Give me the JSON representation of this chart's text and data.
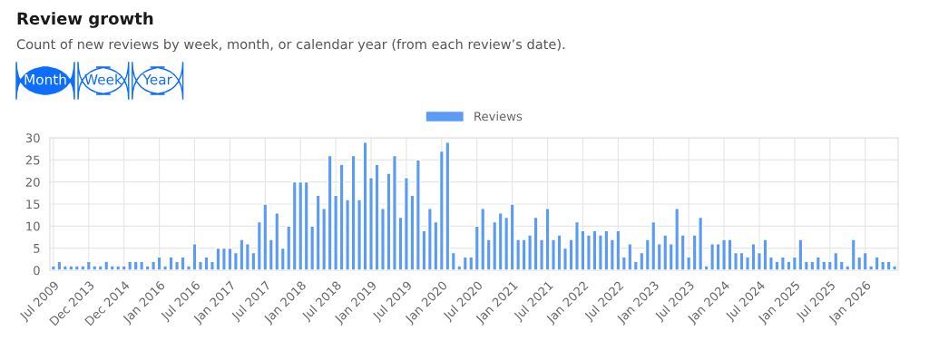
{
  "chart_data": {
    "type": "bar",
    "title": "Review growth",
    "subtitle": "Count of new reviews by week, month, or calendar year (from each review’s date).",
    "annotations": [
      "Month",
      "Week",
      "Year"
    ],
    "categories": [
      "Jul 2009",
      null,
      null,
      null,
      null,
      null,
      "Dec 2013",
      null,
      null,
      null,
      null,
      null,
      "Dec 2014",
      null,
      null,
      null,
      null,
      null,
      "Jan 2016",
      null,
      null,
      null,
      null,
      null,
      "Jul 2016",
      null,
      null,
      null,
      null,
      null,
      "Jan 2017",
      null,
      null,
      null,
      null,
      null,
      "Jul 2017",
      null,
      null,
      null,
      null,
      null,
      "Jan 2018",
      null,
      null,
      null,
      null,
      null,
      "Jul 2018",
      null,
      null,
      null,
      null,
      null,
      "Jan 2019",
      null,
      null,
      null,
      null,
      null,
      "Jul 2019",
      null,
      null,
      null,
      null,
      null,
      "Jan 2020",
      null,
      null,
      null,
      null,
      null,
      "Jul 2020",
      null,
      null,
      null,
      null,
      null,
      "Jan 2021",
      null,
      null,
      null,
      null,
      null,
      "Jul 2021",
      null,
      null,
      null,
      null,
      null,
      "Jan 2022",
      null,
      null,
      null,
      null,
      null,
      "Jul 2022",
      null,
      null,
      null,
      null,
      null,
      "Jan 2023",
      null,
      null,
      null,
      null,
      null,
      "Jul 2023",
      null,
      null,
      null,
      null,
      null,
      "Jan 2024",
      null,
      null,
      null,
      null,
      null,
      "Jul 2024",
      null,
      null,
      null,
      null,
      null,
      "Jan 2025",
      null,
      null,
      null,
      null,
      null,
      "Jul 2025",
      null,
      null,
      null,
      null,
      null,
      "Jan 2026",
      null,
      null,
      null,
      null,
      null
    ],
    "series": [
      {
        "name": "Reviews",
        "color": "#5b9bf8",
        "values": [
          1,
          2,
          1,
          1,
          1,
          1,
          2,
          1,
          1,
          2,
          1,
          1,
          1,
          2,
          2,
          2,
          1,
          2,
          3,
          1,
          3,
          2,
          3,
          1,
          6,
          2,
          3,
          2,
          5,
          5,
          5,
          4,
          7,
          6,
          4,
          11,
          15,
          7,
          13,
          5,
          10,
          20,
          20,
          20,
          10,
          17,
          14,
          26,
          17,
          24,
          16,
          26,
          16,
          29,
          21,
          24,
          14,
          22,
          26,
          12,
          21,
          17,
          25,
          9,
          14,
          11,
          27,
          29,
          4,
          1,
          3,
          3,
          10,
          14,
          7,
          11,
          13,
          12,
          15,
          7,
          7,
          8,
          12,
          7,
          14,
          7,
          8,
          5,
          7,
          11,
          9,
          8,
          9,
          8,
          9,
          7,
          9,
          3,
          6,
          2,
          4,
          7,
          11,
          6,
          8,
          6,
          14,
          8,
          3,
          8,
          12,
          1,
          6,
          6,
          7,
          7,
          4,
          4,
          3,
          6,
          4,
          7,
          3,
          2,
          3,
          2,
          3,
          7,
          2,
          2,
          3,
          2,
          2,
          4,
          2,
          1,
          7,
          3,
          4,
          1,
          3,
          2,
          2,
          1
        ]
      }
    ],
    "ylim": [
      0,
      30
    ],
    "yticks": [
      0,
      5,
      10,
      15,
      20,
      25,
      30
    ],
    "grid": true,
    "legend": "top"
  }
}
